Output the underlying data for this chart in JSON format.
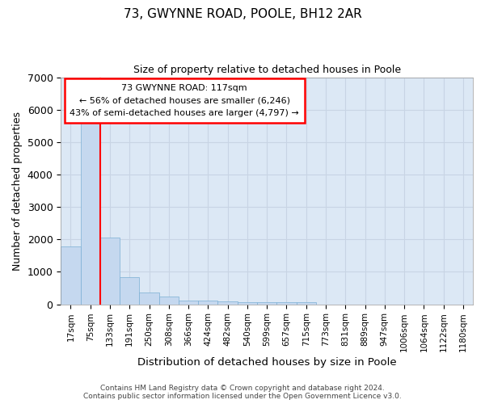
{
  "title1": "73, GWYNNE ROAD, POOLE, BH12 2AR",
  "title2": "Size of property relative to detached houses in Poole",
  "xlabel": "Distribution of detached houses by size in Poole",
  "ylabel": "Number of detached properties",
  "bar_color": "#c5d8ef",
  "bar_edge_color": "#7aafd4",
  "grid_color": "#c8d4e4",
  "background_color": "#dce8f5",
  "categories": [
    "17sqm",
    "75sqm",
    "133sqm",
    "191sqm",
    "250sqm",
    "308sqm",
    "366sqm",
    "424sqm",
    "482sqm",
    "540sqm",
    "599sqm",
    "657sqm",
    "715sqm",
    "773sqm",
    "831sqm",
    "889sqm",
    "947sqm",
    "1006sqm",
    "1064sqm",
    "1122sqm",
    "1180sqm"
  ],
  "values": [
    1780,
    5780,
    2060,
    830,
    370,
    230,
    115,
    110,
    100,
    75,
    65,
    60,
    60,
    0,
    0,
    0,
    0,
    0,
    0,
    0,
    0
  ],
  "property_label": "73 GWYNNE ROAD: 117sqm",
  "pct_smaller": "56% of detached houses are smaller (6,246)",
  "pct_larger": "43% of semi-detached houses are larger (4,797)",
  "vline_x": 1.5,
  "footer1": "Contains HM Land Registry data © Crown copyright and database right 2024.",
  "footer2": "Contains public sector information licensed under the Open Government Licence v3.0.",
  "ylim": [
    0,
    7000
  ],
  "yticks": [
    0,
    1000,
    2000,
    3000,
    4000,
    5000,
    6000,
    7000
  ]
}
